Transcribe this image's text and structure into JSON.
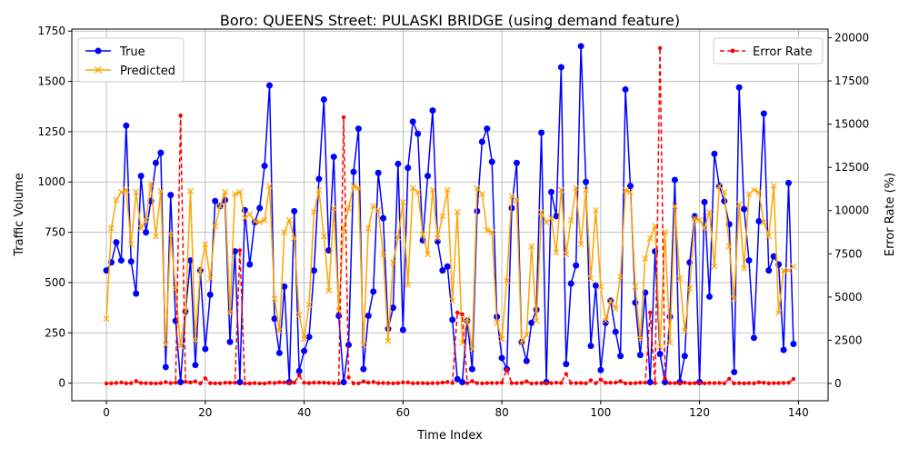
{
  "chart_data": {
    "type": "line",
    "title": "Boro: QUEENS Street: PULASKI BRIDGE (using demand feature)",
    "xlabel": "Time Index",
    "ylabel_left": "Traffic Volume",
    "ylabel_right": "Error Rate (%)",
    "xlim": [
      -7,
      146
    ],
    "ylim_left": [
      -87.5,
      1760
    ],
    "ylim_right": [
      -1000,
      20500
    ],
    "x_ticks": [
      0,
      20,
      40,
      60,
      80,
      100,
      120,
      140
    ],
    "y_ticks_left": [
      0,
      250,
      500,
      750,
      1000,
      1250,
      1500,
      1750
    ],
    "y_ticks_right": [
      0,
      2500,
      5000,
      7500,
      10000,
      12500,
      15000,
      17500,
      20000
    ],
    "x_tick_labels": [
      "0",
      "20",
      "40",
      "60",
      "80",
      "100",
      "120",
      "140"
    ],
    "y_tick_labels_left": [
      "0",
      "250",
      "500",
      "750",
      "1000",
      "1250",
      "1500",
      "1750"
    ],
    "y_tick_labels_right": [
      "0",
      "2500",
      "5000",
      "7500",
      "10000",
      "12500",
      "15000",
      "17500",
      "20000"
    ],
    "grid": true,
    "legend_left": {
      "placement": "top-left",
      "entries": [
        "True",
        "Predicted"
      ]
    },
    "legend_right": {
      "placement": "top-right",
      "entries": [
        "Error Rate"
      ]
    },
    "series": [
      {
        "name": "True",
        "axis": "left",
        "color": "#0000ff",
        "marker": "circle",
        "values": [
          560,
          600,
          700,
          610,
          1280,
          605,
          445,
          1030,
          750,
          905,
          1095,
          1145,
          80,
          935,
          310,
          5,
          355,
          610,
          90,
          560,
          170,
          440,
          905,
          880,
          910,
          205,
          655,
          5,
          860,
          590,
          800,
          870,
          1080,
          1480,
          320,
          150,
          480,
          5,
          855,
          60,
          160,
          230,
          560,
          1015,
          1410,
          660,
          1125,
          335,
          5,
          190,
          1050,
          1265,
          70,
          335,
          455,
          1045,
          820,
          270,
          375,
          1090,
          265,
          1070,
          1300,
          1240,
          710,
          1030,
          1355,
          705,
          560,
          580,
          315,
          20,
          5,
          310,
          70,
          855,
          1200,
          1265,
          1100,
          330,
          125,
          70,
          870,
          1095,
          205,
          110,
          300,
          365,
          1245,
          5,
          950,
          830,
          1570,
          95,
          495,
          585,
          1675,
          1000,
          185,
          485,
          65,
          300,
          410,
          255,
          135,
          1460,
          980,
          400,
          140,
          450,
          5,
          655,
          145,
          5,
          330,
          1010,
          5,
          135,
          600,
          830,
          5,
          900,
          430,
          1140,
          980,
          905,
          790,
          55,
          1470,
          865,
          610,
          225,
          805,
          1340,
          560,
          630,
          590,
          165,
          995,
          195
        ]
      },
      {
        "name": "Predicted",
        "axis": "left",
        "color": "#ffa500",
        "marker": "x",
        "values": [
          320,
          770,
          910,
          950,
          960,
          690,
          950,
          770,
          810,
          990,
          730,
          955,
          190,
          740,
          470,
          185,
          360,
          955,
          215,
          560,
          690,
          520,
          780,
          880,
          950,
          350,
          940,
          950,
          820,
          840,
          805,
          800,
          810,
          980,
          420,
          260,
          750,
          810,
          720,
          340,
          220,
          390,
          850,
          960,
          730,
          460,
          870,
          360,
          770,
          870,
          980,
          970,
          190,
          770,
          880,
          860,
          640,
          210,
          600,
          725,
          900,
          490,
          970,
          950,
          740,
          640,
          960,
          720,
          830,
          960,
          410,
          850,
          200,
          320,
          170,
          970,
          940,
          760,
          750,
          300,
          220,
          510,
          930,
          910,
          200,
          240,
          680,
          310,
          850,
          800,
          820,
          650,
          960,
          640,
          810,
          970,
          690,
          960,
          520,
          860,
          480,
          310,
          410,
          370,
          530,
          960,
          950,
          480,
          220,
          620,
          720,
          780,
          180,
          750,
          200,
          880,
          520,
          260,
          470,
          820,
          810,
          770,
          850,
          580,
          980,
          950,
          680,
          420,
          890,
          570,
          940,
          960,
          950,
          800,
          730,
          980,
          350,
          560,
          560,
          580
        ]
      },
      {
        "name": "Error Rate",
        "axis": "right",
        "color": "#ff0000",
        "marker": "dot",
        "linestyle": "dashed",
        "values": [
          0,
          10,
          30,
          60,
          10,
          20,
          140,
          30,
          20,
          10,
          0,
          20,
          80,
          20,
          50,
          15500,
          100,
          60,
          120,
          10,
          300,
          20,
          10,
          10,
          40,
          40,
          40,
          7700,
          0,
          0,
          20,
          0,
          0,
          40,
          30,
          70,
          60,
          30,
          50,
          450,
          40,
          20,
          50,
          50,
          50,
          30,
          20,
          10,
          15400,
          350,
          10,
          10,
          120,
          50,
          90,
          20,
          30,
          20,
          10,
          20,
          60,
          60,
          10,
          20,
          20,
          10,
          20,
          20,
          50,
          90,
          30,
          4100,
          4000,
          20,
          140,
          20,
          10,
          20,
          30,
          30,
          50,
          800,
          20,
          20,
          30,
          120,
          0,
          20,
          20,
          10,
          20,
          50,
          30,
          550,
          30,
          20,
          30,
          10,
          180,
          20,
          220,
          40,
          50,
          50,
          130,
          10,
          10,
          20,
          50,
          50,
          4100,
          20,
          19400,
          300,
          20,
          20,
          0,
          50,
          10,
          20,
          20,
          10,
          30,
          20,
          30,
          10,
          270,
          10,
          20,
          10,
          20,
          10,
          70,
          40,
          10,
          20,
          20,
          30,
          40,
          260
        ]
      }
    ]
  }
}
